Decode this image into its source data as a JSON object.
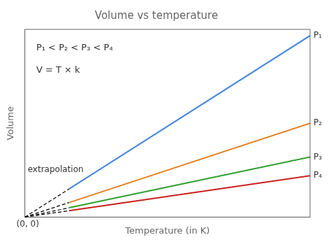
{
  "chart_data": {
    "type": "line",
    "title": "Volume vs temperature",
    "x_label": "Temperature (in K)",
    "y_label": "Volume",
    "annotations": [
      "(0, 0)",
      "P₁ < P₂ < P₃ < P₄",
      "V = T × k",
      "extrapolation"
    ],
    "x": [
      0,
      0.155,
      1.0
    ],
    "series": [
      {
        "name": "P₁",
        "color": "#4488dd",
        "line_style": "solid",
        "values": [
          null,
          0.22475,
          1.45
        ]
      },
      {
        "name": "P₂",
        "color": "#e88020",
        "line_style": "solid",
        "values": [
          null,
          0.11625,
          0.75
        ]
      },
      {
        "name": "P₃",
        "color": "#30a030",
        "line_style": "solid",
        "values": [
          null,
          0.0744,
          0.48
        ]
      },
      {
        "name": "P₄",
        "color": "#cc2020",
        "line_style": "solid",
        "values": [
          null,
          0.05115,
          0.33
        ]
      },
      {
        "color": "black",
        "line_style": "dashed",
        "values": [
          0,
          0.22475,
          null
        ]
      },
      {
        "color": "black",
        "line_style": "dashed",
        "values": [
          0,
          0.11625,
          null
        ]
      },
      {
        "color": "black",
        "line_style": "dashed",
        "values": [
          0,
          0.0744,
          null
        ]
      },
      {
        "color": "black",
        "line_style": "dashed",
        "values": [
          0,
          0.05115,
          null
        ]
      }
    ],
    "xlim": [
      0,
      1.0
    ],
    "ylim": [
      0,
      1.5
    ],
    "tick_labels": false,
    "grid": false
  }
}
